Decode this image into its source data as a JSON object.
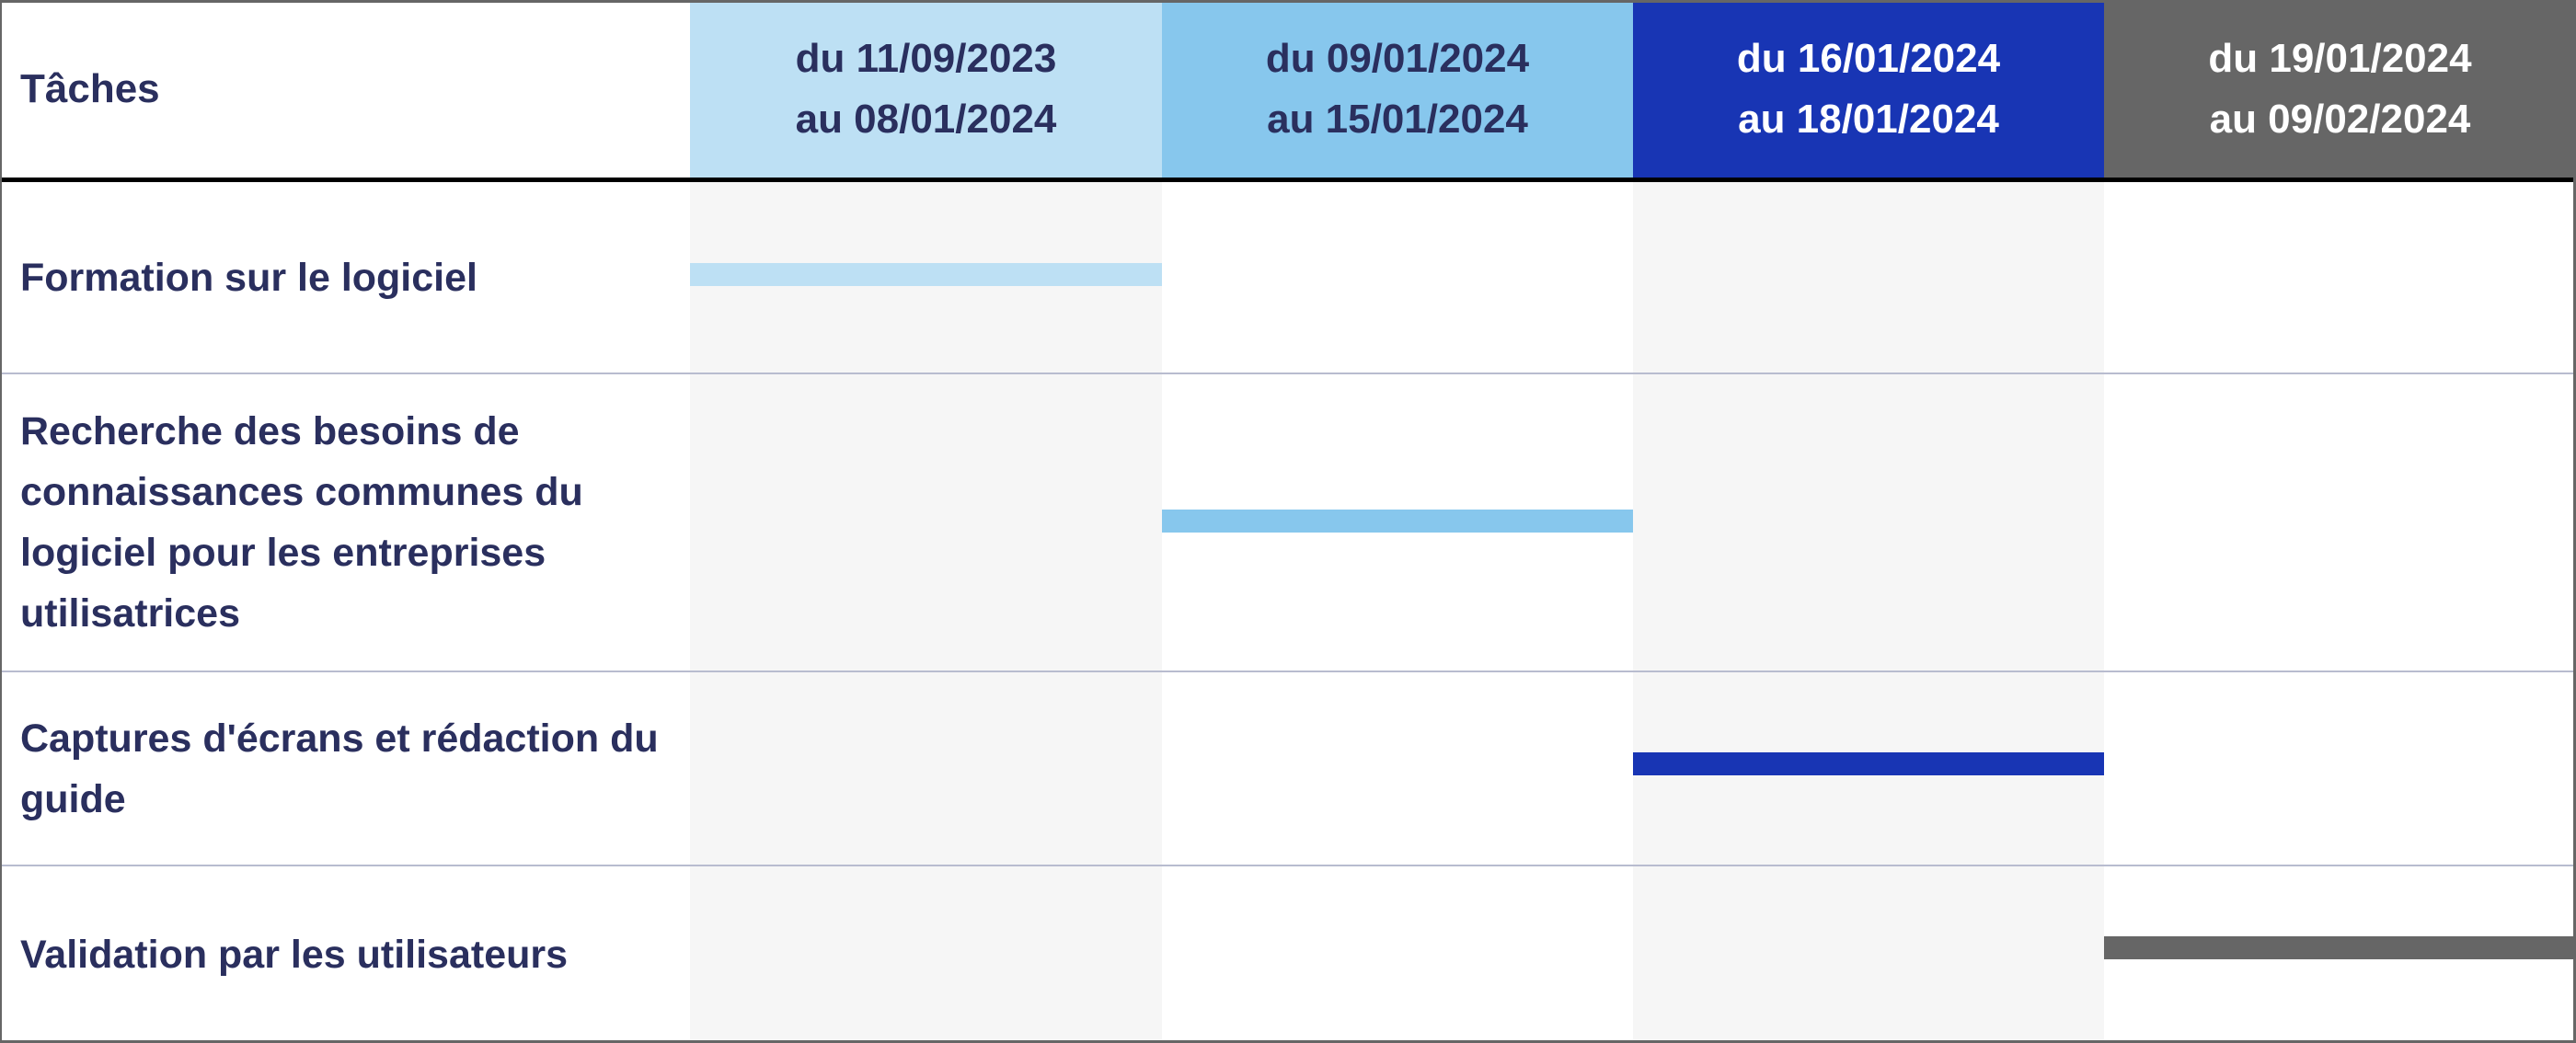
{
  "header": {
    "tasks_label": "Tâches",
    "periods": [
      {
        "line1": "du 11/09/2023",
        "line2": "au 08/01/2024",
        "color": "#bde0f4",
        "text_color": "#2a2f5e"
      },
      {
        "line1": "du 09/01/2024",
        "line2": "au 15/01/2024",
        "color": "#87c7ed",
        "text_color": "#2a2f5e"
      },
      {
        "line1": "du 16/01/2024",
        "line2": "au 18/01/2024",
        "color": "#1835b4",
        "text_color": "#ffffff"
      },
      {
        "line1": "du 19/01/2024",
        "line2": "au 09/02/2024",
        "color": "#666666",
        "text_color": "#ffffff"
      }
    ]
  },
  "tasks": [
    {
      "label": "Formation sur le logiciel",
      "period": 0
    },
    {
      "label": "Recherche des besoins de connaissances communes du logiciel pour les entreprises utilisatrices",
      "period": 1
    },
    {
      "label": "Captures d'écrans et rédaction du guide",
      "period": 2
    },
    {
      "label": "Validation par les utilisateurs",
      "period": 3
    }
  ]
}
